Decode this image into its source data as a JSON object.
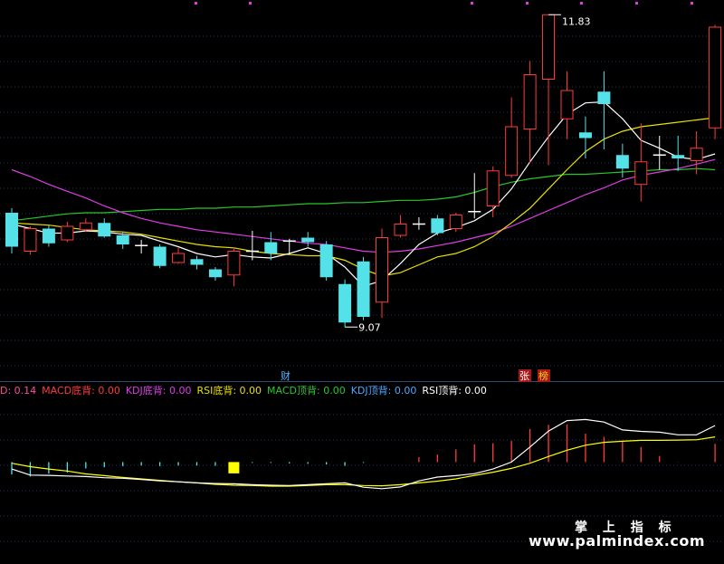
{
  "colors": {
    "background": "#000000",
    "grid": "#1c3a5c",
    "up": "#ff3b3b",
    "down": "#54e1e8",
    "ma5": "#ffffff",
    "ma10": "#e9e000",
    "ma20": "#e03ce6",
    "ma60": "#28c828",
    "macd_pos": "#ff3b3b",
    "macd_neg": "#54e1e8",
    "signal": "#ffff00",
    "marker": "#e03ce6"
  },
  "labels": {
    "high_label": "11.83",
    "low_label": "9.07",
    "cai_tag": "财",
    "zhang_tag": "张",
    "bang_tag": "榜",
    "watermark_title": "掌 上 指 标",
    "watermark_url": "www.palmindex.com"
  },
  "legend": [
    {
      "text": "D: 0.14",
      "color": "#ff4c9c"
    },
    {
      "text": "MACD底背: 0.00",
      "color": "#ff3b3b"
    },
    {
      "text": "KDJ底背: 0.00",
      "color": "#e03ce6"
    },
    {
      "text": "RSI底背: 0.00",
      "color": "#e9e000"
    },
    {
      "text": "MACD顶背: 0.00",
      "color": "#28c828"
    },
    {
      "text": "KDJ顶背: 0.00",
      "color": "#4aa8ff"
    },
    {
      "text": "RSI顶背: 0.00",
      "color": "#ffffff"
    }
  ],
  "chart_data": [
    {
      "type": "candlestick",
      "title": "",
      "ylim": [
        8.6,
        11.92
      ],
      "candles": [
        {
          "o": 10.08,
          "c": 9.78,
          "h": 10.12,
          "l": 9.72
        },
        {
          "o": 9.74,
          "c": 9.94,
          "h": 9.96,
          "l": 9.71
        },
        {
          "o": 9.94,
          "c": 9.81,
          "h": 9.97,
          "l": 9.78
        },
        {
          "o": 9.84,
          "c": 9.96,
          "h": 10.0,
          "l": 9.82
        },
        {
          "o": 9.93,
          "c": 9.99,
          "h": 10.03,
          "l": 9.91
        },
        {
          "o": 9.99,
          "c": 9.87,
          "h": 10.03,
          "l": 9.86
        },
        {
          "o": 9.88,
          "c": 9.8,
          "h": 9.91,
          "l": 9.76
        },
        {
          "o": 9.79,
          "c": 9.79,
          "h": 9.84,
          "l": 9.72
        },
        {
          "o": 9.78,
          "c": 9.61,
          "h": 9.8,
          "l": 9.59
        },
        {
          "o": 9.64,
          "c": 9.72,
          "h": 9.77,
          "l": 9.63
        },
        {
          "o": 9.67,
          "c": 9.62,
          "h": 9.7,
          "l": 9.58
        },
        {
          "o": 9.58,
          "c": 9.51,
          "h": 9.6,
          "l": 9.48
        },
        {
          "o": 9.53,
          "c": 9.74,
          "h": 9.77,
          "l": 9.43
        },
        {
          "o": 9.74,
          "c": 9.74,
          "h": 9.92,
          "l": 9.66
        },
        {
          "o": 9.82,
          "c": 9.72,
          "h": 9.91,
          "l": 9.66
        },
        {
          "o": 9.83,
          "c": 9.83,
          "h": 9.85,
          "l": 9.71
        },
        {
          "o": 9.86,
          "c": 9.82,
          "h": 9.91,
          "l": 9.78
        },
        {
          "o": 9.8,
          "c": 9.51,
          "h": 9.83,
          "l": 9.48
        },
        {
          "o": 9.45,
          "c": 9.11,
          "h": 9.49,
          "l": 9.07
        },
        {
          "o": 9.65,
          "c": 9.16,
          "h": 9.69,
          "l": 9.13
        },
        {
          "o": 9.29,
          "c": 9.86,
          "h": 9.94,
          "l": 9.15
        },
        {
          "o": 9.88,
          "c": 9.98,
          "h": 10.06,
          "l": 9.86
        },
        {
          "o": 9.98,
          "c": 9.98,
          "h": 10.04,
          "l": 9.93
        },
        {
          "o": 10.03,
          "c": 9.9,
          "h": 10.06,
          "l": 9.88
        },
        {
          "o": 9.94,
          "c": 10.06,
          "h": 10.08,
          "l": 9.91
        },
        {
          "o": 10.09,
          "c": 10.09,
          "h": 10.43,
          "l": 10.03
        },
        {
          "o": 10.14,
          "c": 10.45,
          "h": 10.49,
          "l": 10.04
        },
        {
          "o": 10.41,
          "c": 10.84,
          "h": 11.1,
          "l": 10.39
        },
        {
          "o": 10.82,
          "c": 11.3,
          "h": 11.42,
          "l": 10.52
        },
        {
          "o": 11.26,
          "c": 11.83,
          "h": 11.83,
          "l": 10.5
        },
        {
          "o": 10.91,
          "c": 11.16,
          "h": 11.33,
          "l": 10.73
        },
        {
          "o": 10.79,
          "c": 10.74,
          "h": 10.93,
          "l": 10.56
        },
        {
          "o": 11.15,
          "c": 11.04,
          "h": 11.33,
          "l": 10.64
        },
        {
          "o": 10.59,
          "c": 10.47,
          "h": 10.69,
          "l": 10.39
        },
        {
          "o": 10.33,
          "c": 10.53,
          "h": 10.87,
          "l": 10.18
        },
        {
          "o": 10.59,
          "c": 10.59,
          "h": 10.76,
          "l": 10.46
        },
        {
          "o": 10.59,
          "c": 10.56,
          "h": 10.76,
          "l": 10.45
        },
        {
          "o": 10.54,
          "c": 10.65,
          "h": 10.8,
          "l": 10.42
        },
        {
          "o": 10.83,
          "c": 11.72,
          "h": 11.74,
          "l": 10.73
        }
      ],
      "ma5": [
        9.98,
        9.94,
        9.9,
        9.9,
        9.92,
        9.91,
        9.89,
        9.88,
        9.83,
        9.78,
        9.72,
        9.69,
        9.71,
        9.69,
        9.68,
        9.72,
        9.77,
        9.72,
        9.6,
        9.43,
        9.48,
        9.63,
        9.8,
        9.9,
        9.95,
        10.01,
        10.11,
        10.29,
        10.53,
        10.75,
        10.95,
        11.05,
        11.06,
        10.91,
        10.72,
        10.65,
        10.57,
        10.55,
        10.6
      ],
      "ma10": [
        9.99,
        9.98,
        9.97,
        9.95,
        9.93,
        9.92,
        9.91,
        9.89,
        9.86,
        9.83,
        9.8,
        9.78,
        9.77,
        9.74,
        9.72,
        9.71,
        9.7,
        9.7,
        9.66,
        9.58,
        9.52,
        9.55,
        9.62,
        9.69,
        9.72,
        9.78,
        9.87,
        9.99,
        10.12,
        10.29,
        10.46,
        10.62,
        10.73,
        10.8,
        10.84,
        10.86,
        10.88,
        10.9,
        10.92
      ],
      "ma20": [
        10.46,
        10.4,
        10.33,
        10.27,
        10.21,
        10.14,
        10.08,
        10.03,
        9.99,
        9.96,
        9.93,
        9.91,
        9.89,
        9.87,
        9.85,
        9.83,
        9.81,
        9.8,
        9.77,
        9.74,
        9.73,
        9.74,
        9.76,
        9.79,
        9.82,
        9.86,
        9.9,
        9.96,
        10.03,
        10.1,
        10.17,
        10.24,
        10.3,
        10.37,
        10.41,
        10.44,
        10.47,
        10.51,
        10.55
      ],
      "ma60": [
        10.01,
        10.03,
        10.05,
        10.07,
        10.08,
        10.08,
        10.09,
        10.1,
        10.11,
        10.11,
        10.12,
        10.12,
        10.13,
        10.13,
        10.14,
        10.15,
        10.16,
        10.16,
        10.17,
        10.17,
        10.18,
        10.19,
        10.19,
        10.2,
        10.22,
        10.26,
        10.31,
        10.35,
        10.38,
        10.4,
        10.42,
        10.42,
        10.43,
        10.44,
        10.45,
        10.46,
        10.46,
        10.47,
        10.46
      ],
      "high_index": 29,
      "low_index": 18
    },
    {
      "type": "bar",
      "title": "",
      "ylim": [
        -0.28,
        0.22
      ],
      "macd": [
        -0.043,
        -0.05,
        -0.04,
        -0.036,
        -0.022,
        -0.018,
        -0.014,
        -0.012,
        -0.014,
        -0.012,
        -0.012,
        -0.013,
        -0.039,
        -0.003,
        -0.003,
        -0.005,
        -0.006,
        -0.008,
        -0.013,
        -0.003,
        0.0,
        0.0,
        0.017,
        0.026,
        0.044,
        0.061,
        0.065,
        0.073,
        0.114,
        0.129,
        0.13,
        0.098,
        0.087,
        0.07,
        0.052,
        0.021,
        0.001,
        0.0,
        0.063
      ],
      "dif": [
        -0.024,
        -0.045,
        -0.046,
        -0.048,
        -0.05,
        -0.054,
        -0.056,
        -0.06,
        -0.065,
        -0.068,
        -0.072,
        -0.074,
        -0.075,
        -0.078,
        -0.08,
        -0.081,
        -0.078,
        -0.075,
        -0.072,
        -0.087,
        -0.092,
        -0.086,
        -0.065,
        -0.052,
        -0.047,
        -0.04,
        -0.024,
        0.0,
        0.052,
        0.107,
        0.143,
        0.147,
        0.138,
        0.111,
        0.106,
        0.103,
        0.094,
        0.094,
        0.126
      ],
      "dea": [
        -0.004,
        -0.016,
        -0.024,
        -0.031,
        -0.041,
        -0.047,
        -0.053,
        -0.058,
        -0.063,
        -0.068,
        -0.072,
        -0.077,
        -0.08,
        -0.081,
        -0.083,
        -0.083,
        -0.081,
        -0.078,
        -0.078,
        -0.081,
        -0.082,
        -0.078,
        -0.072,
        -0.066,
        -0.058,
        -0.046,
        -0.035,
        -0.022,
        -0.004,
        0.019,
        0.041,
        0.058,
        0.068,
        0.072,
        0.075,
        0.075,
        0.076,
        0.077,
        0.087
      ],
      "marker_index": 12,
      "marker_value": -0.039
    }
  ]
}
